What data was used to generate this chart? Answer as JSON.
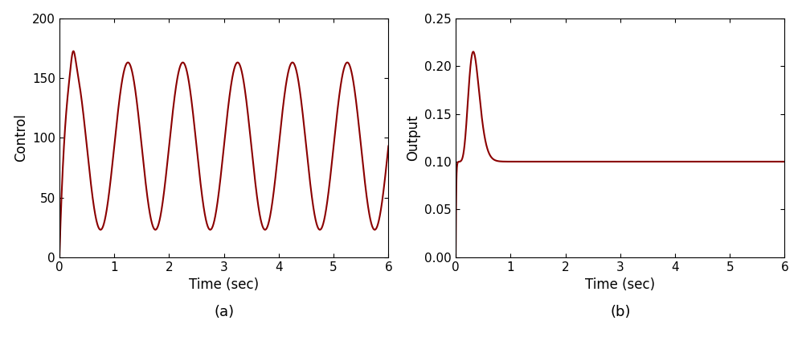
{
  "line_color": "#8B0000",
  "line_width": 1.5,
  "t_end": 6.0,
  "dt": 0.0005,
  "xlabel": "Time (sec)",
  "ylabel_left": "Control",
  "ylabel_right": "Output",
  "label_a": "(a)",
  "label_b": "(b)",
  "ylim_left": [
    0,
    200
  ],
  "ylim_right": [
    0,
    0.25
  ],
  "xlim": [
    0,
    6
  ],
  "yticks_left": [
    0,
    50,
    100,
    150,
    200
  ],
  "yticks_right": [
    0,
    0.05,
    0.1,
    0.15,
    0.2,
    0.25
  ],
  "xticks": [
    0,
    1,
    2,
    3,
    4,
    5,
    6
  ],
  "xlabel_fontsize": 12,
  "ylabel_fontsize": 12,
  "tick_fontsize": 11,
  "label_fontsize": 13,
  "fig_width": 9.98,
  "fig_height": 4.19,
  "control_A": 93.0,
  "control_B": 70.0,
  "control_freq": 1.0,
  "control_gamma": 12.0,
  "control_extra_amp": 12.0,
  "control_extra_gamma": 25.0,
  "output_Kss": 0.1,
  "output_peak": 0.215,
  "output_peak_time": 0.32,
  "output_n": 10,
  "output_fast_tau": 0.008,
  "bg_color": "#ffffff"
}
